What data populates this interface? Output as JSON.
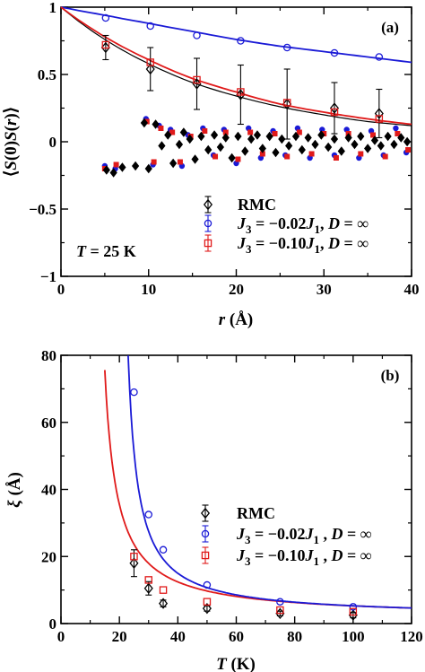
{
  "colors": {
    "rmc": "#000000",
    "j3_002": "#1a1ad6",
    "j3_010": "#e01a1a"
  },
  "chart_data": [
    {
      "type": "scatter",
      "panel": "(a)",
      "xlabel": "r (Å)",
      "ylabel": "⟨S(0)S(r)⟩",
      "xlim": [
        0,
        40
      ],
      "ylim": [
        -1,
        1
      ],
      "x_ticks": [
        "0",
        "10",
        "20",
        "30",
        "40"
      ],
      "y_ticks": [
        "1",
        "0.5",
        "0",
        "−0.5",
        "−1"
      ],
      "annotation": "T = 25 K",
      "legend": [
        "RMC",
        "J3 = −0.02J1, D = ∞",
        "J3 = −0.10J1, D = ∞"
      ],
      "legend_placement": "lower-right",
      "grid": false,
      "series": [
        {
          "name": "RMC",
          "marker": "diamond",
          "x": [
            5.1,
            10.2,
            15.5,
            20.5,
            25.8,
            31.2,
            36.3
          ],
          "y": [
            0.7,
            0.54,
            0.43,
            0.35,
            0.28,
            0.25,
            0.21
          ],
          "err": [
            0.09,
            0.16,
            0.19,
            0.22,
            0.26,
            0.19,
            0.18
          ]
        },
        {
          "name": "J3 = −0.02J1, D = ∞",
          "marker": "circle",
          "x": [
            5.1,
            10.2,
            15.5,
            20.5,
            25.8,
            31.2,
            36.3
          ],
          "y": [
            0.92,
            0.86,
            0.79,
            0.75,
            0.7,
            0.66,
            0.63
          ]
        },
        {
          "name": "J3 = −0.10J1, D = ∞",
          "marker": "square",
          "x": [
            5.1,
            10.2,
            15.5,
            20.5,
            25.8,
            31.2,
            36.3
          ],
          "y": [
            0.72,
            0.59,
            0.46,
            0.37,
            0.29,
            0.22,
            0.17
          ]
        }
      ],
      "fit_curves": [
        {
          "name": "RMC fit",
          "x": [
            0,
            5,
            10,
            15,
            20,
            25,
            30,
            35,
            40
          ],
          "y": [
            1.0,
            0.76,
            0.58,
            0.44,
            0.34,
            0.26,
            0.2,
            0.15,
            0.12
          ]
        },
        {
          "name": "J3 = −0.02J1 fit",
          "x": [
            0,
            5,
            10,
            15,
            20,
            25,
            30,
            35,
            40
          ],
          "y": [
            1.0,
            0.94,
            0.88,
            0.82,
            0.76,
            0.71,
            0.67,
            0.63,
            0.59
          ]
        },
        {
          "name": "J3 = −0.10J1 fit",
          "x": [
            0,
            5,
            10,
            15,
            20,
            25,
            30,
            35,
            40
          ],
          "y": [
            1.0,
            0.78,
            0.61,
            0.47,
            0.37,
            0.28,
            0.22,
            0.17,
            0.13
          ]
        }
      ],
      "scatter_cloud": {
        "rmc": [
          [
            5.2,
            -0.21
          ],
          [
            6.0,
            -0.23
          ],
          [
            7.0,
            -0.19
          ],
          [
            8.5,
            -0.18
          ],
          [
            9.5,
            0.14
          ],
          [
            10.0,
            -0.2
          ],
          [
            10.8,
            0.13
          ],
          [
            11.5,
            -0.03
          ],
          [
            12.2,
            0.05
          ],
          [
            12.8,
            -0.16
          ],
          [
            13.5,
            -0.02
          ],
          [
            14.0,
            0.07
          ],
          [
            14.7,
            0.02
          ],
          [
            15.3,
            -0.13
          ],
          [
            16.0,
            0.04
          ],
          [
            16.8,
            -0.06
          ],
          [
            17.5,
            0.05
          ],
          [
            18.2,
            -0.04
          ],
          [
            18.8,
            0.03
          ],
          [
            19.5,
            -0.12
          ],
          [
            20.2,
            0.04
          ],
          [
            21.0,
            -0.07
          ],
          [
            21.7,
            0.02
          ],
          [
            22.4,
            0.05
          ],
          [
            23.0,
            -0.05
          ],
          [
            23.8,
            0.04
          ],
          [
            24.5,
            -0.08
          ],
          [
            25.2,
            0.02
          ],
          [
            26.0,
            -0.03
          ],
          [
            26.8,
            0.04
          ],
          [
            27.5,
            -0.06
          ],
          [
            28.2,
            0.03
          ],
          [
            29.0,
            -0.02
          ],
          [
            29.7,
            0.05
          ],
          [
            30.5,
            -0.04
          ],
          [
            31.2,
            0.02
          ],
          [
            32.0,
            -0.07
          ],
          [
            32.8,
            0.03
          ],
          [
            33.5,
            -0.02
          ],
          [
            34.2,
            0.04
          ],
          [
            35.0,
            -0.05
          ],
          [
            35.8,
            0.01
          ],
          [
            36.5,
            -0.03
          ],
          [
            37.3,
            0.04
          ],
          [
            38.0,
            -0.02
          ],
          [
            38.8,
            0.03
          ],
          [
            39.5,
            0.0
          ]
        ],
        "j3_002": [
          [
            5.0,
            -0.18
          ],
          [
            6.2,
            -0.2
          ],
          [
            9.7,
            0.17
          ],
          [
            10.5,
            -0.17
          ],
          [
            11.2,
            0.12
          ],
          [
            12.5,
            0.09
          ],
          [
            13.8,
            -0.18
          ],
          [
            14.5,
            0.05
          ],
          [
            16.2,
            0.1
          ],
          [
            17.4,
            -0.1
          ],
          [
            18.6,
            0.09
          ],
          [
            20.0,
            -0.16
          ],
          [
            21.4,
            0.1
          ],
          [
            22.8,
            -0.12
          ],
          [
            24.2,
            0.08
          ],
          [
            25.6,
            -0.1
          ],
          [
            27.0,
            0.1
          ],
          [
            28.4,
            -0.12
          ],
          [
            29.8,
            0.09
          ],
          [
            31.2,
            -0.1
          ],
          [
            32.6,
            0.09
          ],
          [
            34.0,
            -0.12
          ],
          [
            35.4,
            0.08
          ],
          [
            36.8,
            -0.1
          ],
          [
            38.2,
            0.1
          ],
          [
            39.4,
            -0.08
          ]
        ],
        "j3_010": [
          [
            5.0,
            -0.2
          ],
          [
            6.3,
            -0.17
          ],
          [
            9.8,
            0.15
          ],
          [
            10.6,
            -0.15
          ],
          [
            11.4,
            0.1
          ],
          [
            12.7,
            0.07
          ],
          [
            13.6,
            -0.15
          ],
          [
            14.8,
            0.04
          ],
          [
            16.4,
            0.08
          ],
          [
            17.6,
            -0.11
          ],
          [
            18.8,
            0.07
          ],
          [
            20.2,
            -0.13
          ],
          [
            21.6,
            0.07
          ],
          [
            23.0,
            -0.09
          ],
          [
            24.4,
            0.06
          ],
          [
            25.8,
            -0.11
          ],
          [
            27.2,
            0.07
          ],
          [
            28.6,
            -0.09
          ],
          [
            30.0,
            0.06
          ],
          [
            31.4,
            -0.12
          ],
          [
            32.8,
            0.06
          ],
          [
            34.2,
            -0.09
          ],
          [
            35.6,
            0.05
          ],
          [
            37.0,
            -0.11
          ],
          [
            38.4,
            0.06
          ],
          [
            39.6,
            -0.06
          ]
        ]
      }
    },
    {
      "type": "scatter",
      "panel": "(b)",
      "xlabel": "T (K)",
      "ylabel": "ξ (Å)",
      "xlim": [
        0,
        120
      ],
      "ylim": [
        0,
        80
      ],
      "x_ticks": [
        "0",
        "20",
        "40",
        "60",
        "80",
        "100",
        "120"
      ],
      "y_ticks": [
        "80",
        "60",
        "40",
        "20",
        "0"
      ],
      "legend": [
        "RMC",
        "J3 = −0.02J1 , D = ∞",
        "J3 = −0.10J1 , D = ∞"
      ],
      "legend_placement": "lower-right",
      "grid": false,
      "series": [
        {
          "name": "RMC",
          "marker": "diamond",
          "x": [
            25,
            30,
            35,
            50,
            75,
            100
          ],
          "y": [
            18.0,
            10.5,
            6.0,
            4.5,
            3.0,
            2.5
          ],
          "err": [
            4.0,
            2.0,
            1.0,
            0.8,
            0.7,
            0.8
          ]
        },
        {
          "name": "J3 = −0.02J1 , D = ∞",
          "marker": "circle",
          "x": [
            25,
            30,
            35,
            50,
            75,
            100
          ],
          "y": [
            69.0,
            32.5,
            22.0,
            11.5,
            6.5,
            5.0
          ]
        },
        {
          "name": "J3 = −0.10J1 , D = ∞",
          "marker": "square",
          "x": [
            25,
            30,
            35,
            50,
            75,
            100
          ],
          "y": [
            20.0,
            13.0,
            10.0,
            6.5,
            4.0,
            3.5
          ]
        }
      ]
    }
  ]
}
